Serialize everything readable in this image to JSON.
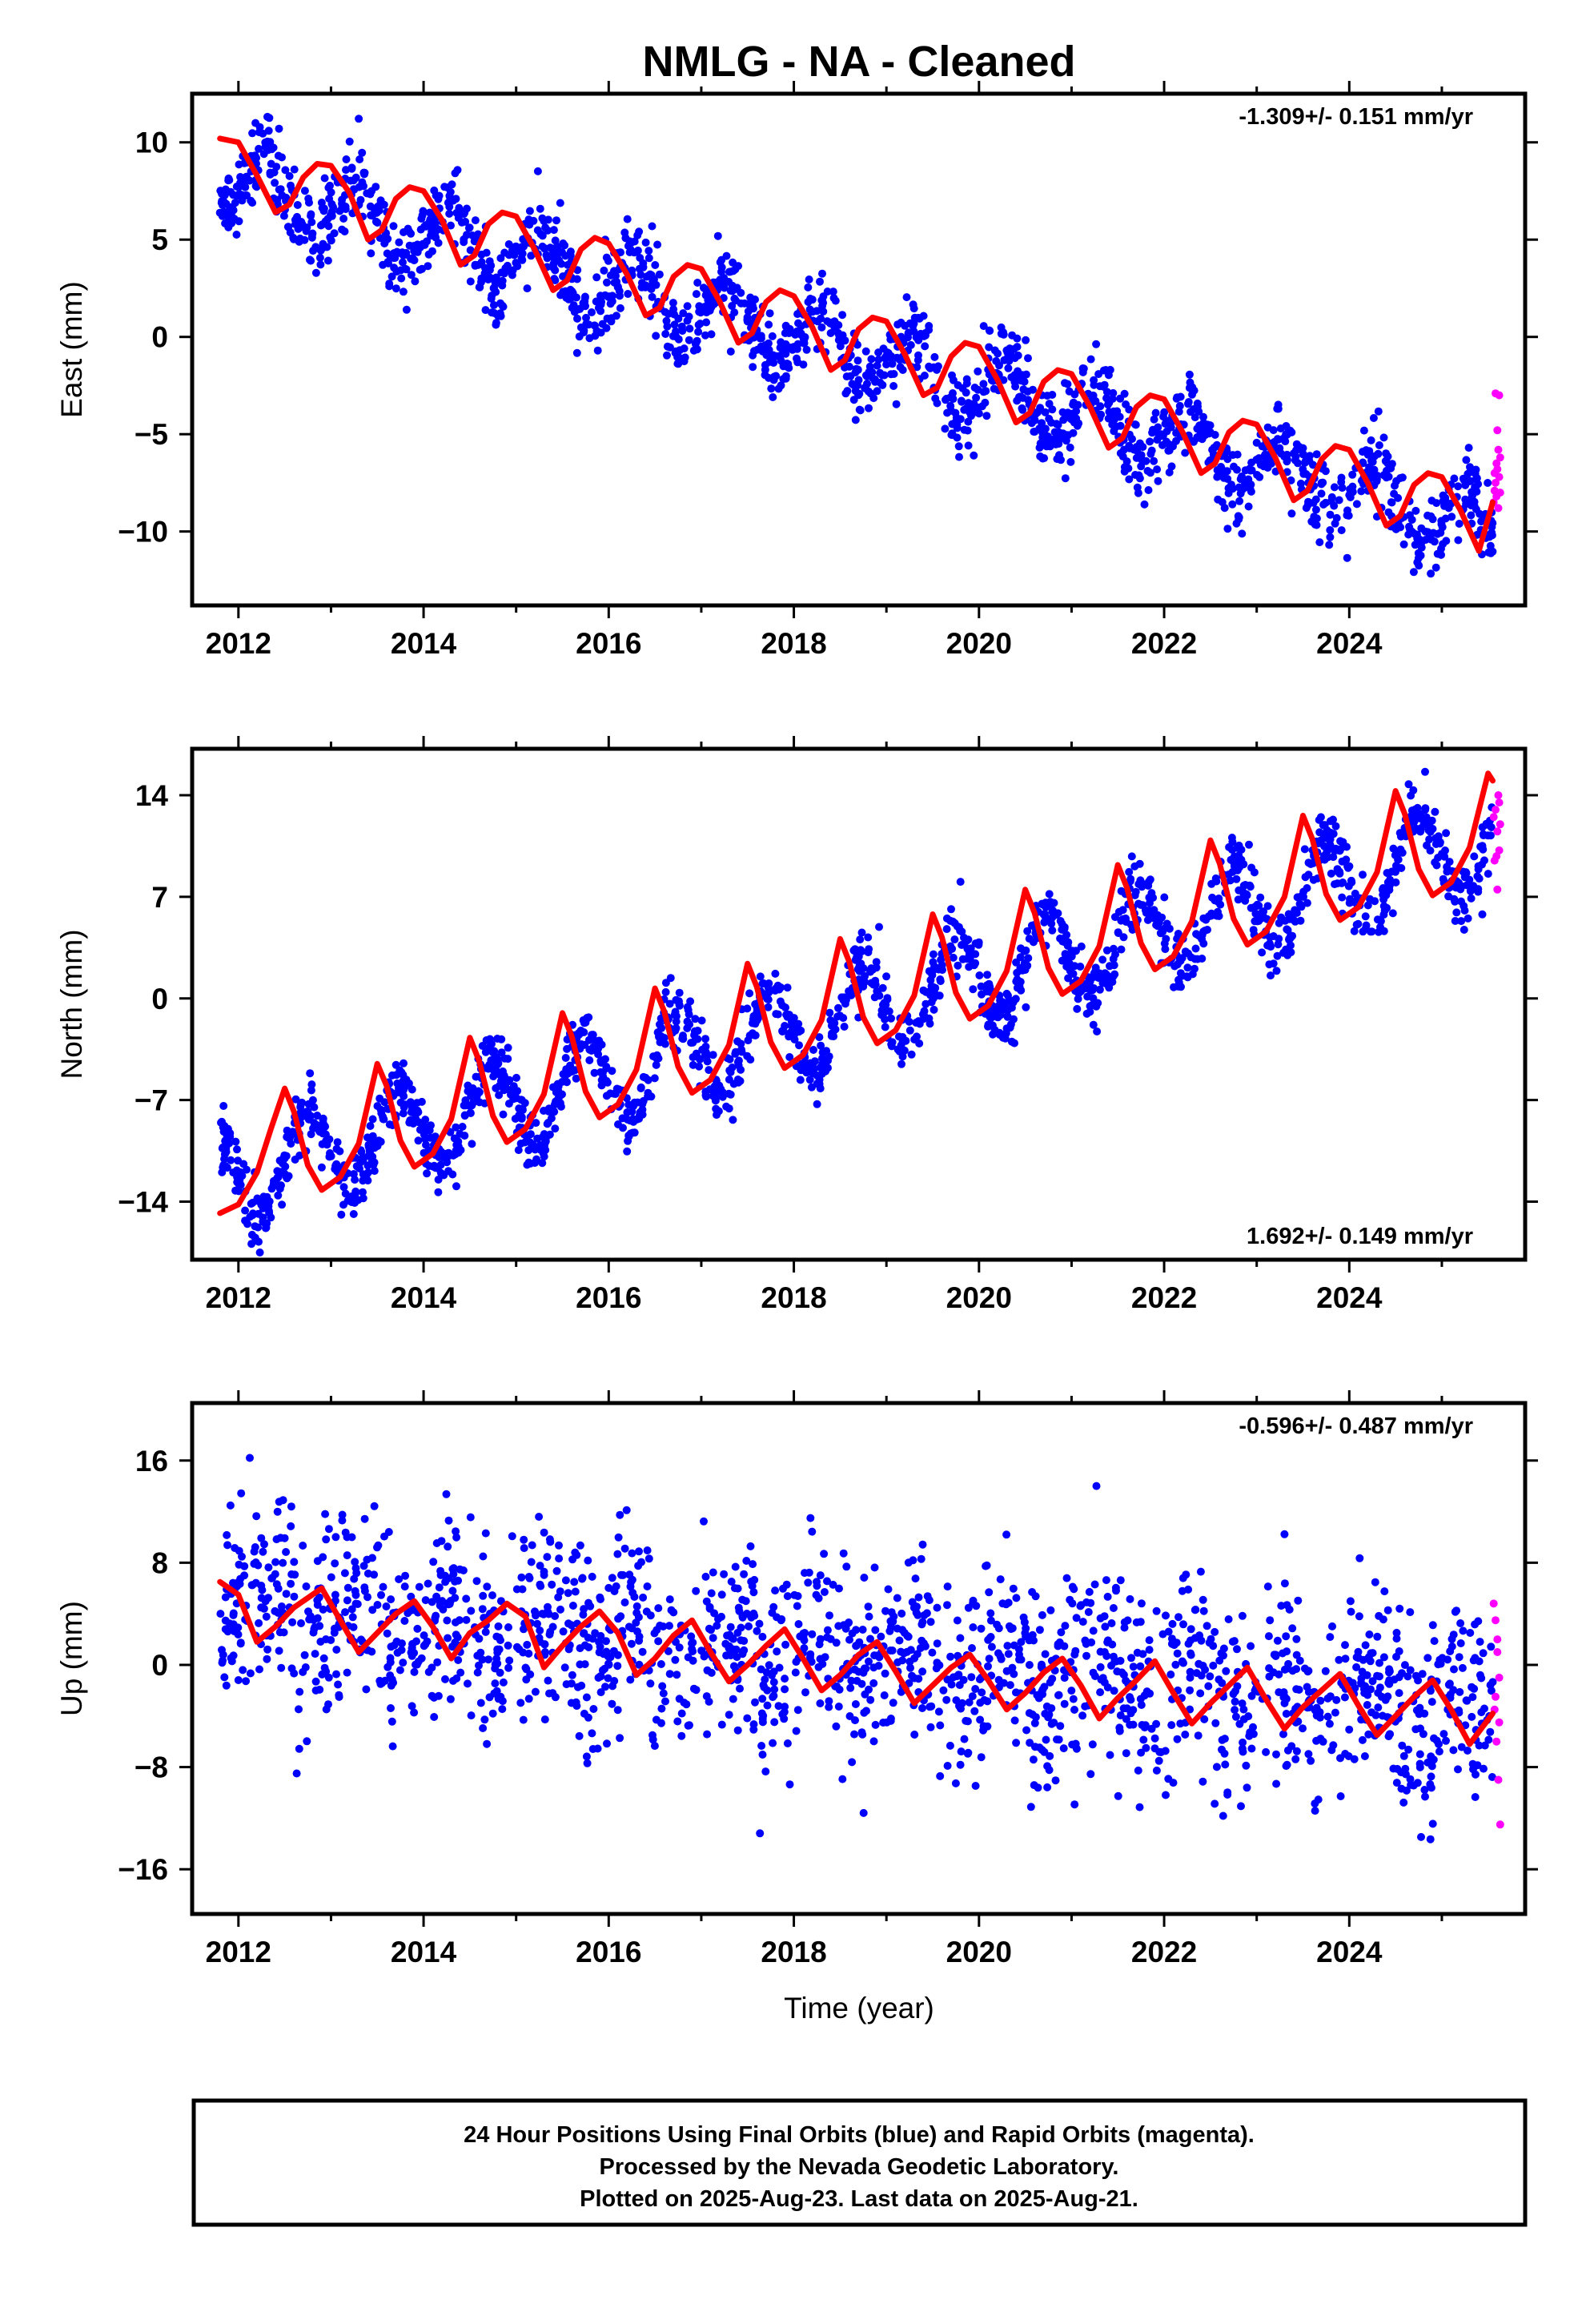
{
  "title": "NMLG  - NA - Cleaned",
  "xlabel": "Time (year)",
  "caption": [
    "24 Hour Positions Using Final Orbits (blue) and Rapid Orbits (magenta).",
    "Processed by the Nevada Geodetic Laboratory.",
    "Plotted on 2025-Aug-23. Last data on 2025-Aug-21."
  ],
  "colors": {
    "final_orbits": "#0000ff",
    "rapid_orbits": "#ff00ff",
    "fit": "#ff0000",
    "frame": "#000000"
  },
  "chart_data": [
    {
      "type": "scatter",
      "component": "east",
      "ylabel": "East (mm)",
      "rate_text": "-1.309+/- 0.151 mm/yr",
      "rate_position": "top-right",
      "xlim": [
        2011.5,
        2025.9
      ],
      "ylim": [
        -13.8,
        12.5
      ],
      "xticks": [
        2012,
        2014,
        2016,
        2018,
        2020,
        2022,
        2024
      ],
      "yticks": [
        10,
        5,
        0,
        -5,
        -10
      ],
      "yticklabels": [
        "10",
        "5",
        "0",
        "−5",
        "−10"
      ],
      "grid": false,
      "series": [
        {
          "name": "Final Orbits (blue)",
          "style": "points",
          "x_range": [
            2011.8,
            2025.55
          ],
          "trend": {
            "anchor_year": 2011.8,
            "value_at_anchor": 8.2,
            "slope": -1.309
          },
          "seasonal": {
            "amplitude": 1.7,
            "phase": 1.75,
            "period": 1.0
          },
          "scatter_std": 1.0,
          "count": 1800
        },
        {
          "name": "Rapid Orbits (magenta)",
          "style": "points",
          "x": [
            2025.56,
            2025.58,
            2025.6,
            2025.62,
            2025.63,
            2025.57,
            2025.59,
            2025.61,
            2025.6,
            2025.62,
            2025.58,
            2025.61,
            2025.63,
            2025.57,
            2025.59
          ],
          "y": [
            -8.5,
            -7.5,
            -6.8,
            -7.2,
            -8.0,
            -7.9,
            -6.5,
            -5.8,
            -4.8,
            -3.0,
            -2.9,
            -8.8,
            -6.2,
            -7.0,
            -8.2
          ]
        },
        {
          "name": "fit",
          "style": "line",
          "x": [
            2011.8,
            2012.0,
            2012.2,
            2012.4,
            2012.55,
            2012.7,
            2012.85,
            2013.0,
            2013.2,
            2013.4,
            2013.55,
            2013.7,
            2013.85,
            2014.0,
            2014.2,
            2014.4,
            2014.55,
            2014.7,
            2014.85,
            2015.0,
            2015.2,
            2015.4,
            2015.55,
            2015.7,
            2015.85,
            2016.0,
            2016.2,
            2016.4,
            2016.55,
            2016.7,
            2016.85,
            2017.0,
            2017.2,
            2017.4,
            2017.55,
            2017.7,
            2017.85,
            2018.0,
            2018.2,
            2018.4,
            2018.55,
            2018.7,
            2018.85,
            2019.0,
            2019.2,
            2019.4,
            2019.55,
            2019.7,
            2019.85,
            2020.0,
            2020.2,
            2020.4,
            2020.55,
            2020.7,
            2020.85,
            2021.0,
            2021.2,
            2021.4,
            2021.55,
            2021.7,
            2021.85,
            2022.0,
            2022.2,
            2022.4,
            2022.55,
            2022.7,
            2022.85,
            2023.0,
            2023.2,
            2023.4,
            2023.55,
            2023.7,
            2023.85,
            2024.0,
            2024.2,
            2024.4,
            2024.55,
            2024.7,
            2024.85,
            2025.0,
            2025.2,
            2025.4,
            2025.55
          ],
          "y": [
            10.2,
            10.0,
            8.3,
            6.4,
            6.8,
            8.2,
            8.9,
            8.8,
            7.4,
            5.0,
            5.5,
            7.1,
            7.7,
            7.5,
            6.0,
            3.7,
            4.2,
            5.8,
            6.4,
            6.2,
            4.5,
            2.4,
            2.9,
            4.5,
            5.1,
            4.8,
            3.2,
            1.1,
            1.5,
            3.1,
            3.7,
            3.5,
            1.8,
            -0.3,
            0.2,
            1.8,
            2.4,
            2.1,
            0.5,
            -1.7,
            -1.2,
            0.4,
            1.0,
            0.8,
            -0.9,
            -3.0,
            -2.6,
            -1.0,
            -0.3,
            -0.5,
            -2.2,
            -4.4,
            -3.9,
            -2.3,
            -1.7,
            -1.9,
            -3.6,
            -5.7,
            -5.2,
            -3.6,
            -3.0,
            -3.2,
            -4.9,
            -7.0,
            -6.5,
            -4.9,
            -4.3,
            -4.5,
            -6.2,
            -8.4,
            -7.9,
            -6.3,
            -5.6,
            -5.8,
            -7.5,
            -9.7,
            -9.2,
            -7.6,
            -7.0,
            -7.2,
            -8.9,
            -11.0,
            -8.5
          ]
        }
      ]
    },
    {
      "type": "scatter",
      "component": "north",
      "ylabel": "North (mm)",
      "rate_text": "1.692+/- 0.149 mm/yr",
      "rate_position": "bottom-right",
      "xlim": [
        2011.5,
        2025.9
      ],
      "ylim": [
        -18.0,
        17.2
      ],
      "xticks": [
        2012,
        2014,
        2016,
        2018,
        2020,
        2022,
        2024
      ],
      "yticks": [
        14,
        7,
        0,
        -7,
        -14
      ],
      "yticklabels": [
        "14",
        "7",
        "0",
        "−7",
        "−14"
      ],
      "grid": false,
      "series": [
        {
          "name": "Final Orbits (blue)",
          "style": "points",
          "x_range": [
            2011.8,
            2025.55
          ],
          "trend": {
            "anchor_year": 2011.8,
            "value_at_anchor": -12.5,
            "slope": 1.692
          },
          "seasonal": {
            "amplitude": 3.2,
            "phase": 4.6,
            "period": 1.0
          },
          "scatter_std": 1.1,
          "count": 1800
        },
        {
          "name": "Rapid Orbits (magenta)",
          "style": "points",
          "x": [
            2025.56,
            2025.58,
            2025.6,
            2025.62,
            2025.57,
            2025.59,
            2025.61,
            2025.63,
            2025.6,
            2025.62
          ],
          "y": [
            12.5,
            13.0,
            11.5,
            10.2,
            9.5,
            9.8,
            14.0,
            12.0,
            7.5,
            13.5
          ]
        },
        {
          "name": "fit",
          "style": "line",
          "x": [
            2011.8,
            2012.0,
            2012.2,
            2012.35,
            2012.5,
            2012.6,
            2012.75,
            2012.9,
            2013.1,
            2013.3,
            2013.5,
            2013.6,
            2013.75,
            2013.9,
            2014.1,
            2014.3,
            2014.5,
            2014.6,
            2014.75,
            2014.9,
            2015.1,
            2015.3,
            2015.5,
            2015.6,
            2015.75,
            2015.9,
            2016.1,
            2016.3,
            2016.5,
            2016.6,
            2016.75,
            2016.9,
            2017.1,
            2017.3,
            2017.5,
            2017.6,
            2017.75,
            2017.9,
            2018.1,
            2018.3,
            2018.5,
            2018.6,
            2018.75,
            2018.9,
            2019.1,
            2019.3,
            2019.5,
            2019.6,
            2019.75,
            2019.9,
            2020.1,
            2020.3,
            2020.5,
            2020.6,
            2020.75,
            2020.9,
            2021.1,
            2021.3,
            2021.5,
            2021.6,
            2021.75,
            2021.9,
            2022.1,
            2022.3,
            2022.5,
            2022.6,
            2022.75,
            2022.9,
            2023.1,
            2023.3,
            2023.5,
            2023.6,
            2023.75,
            2023.9,
            2024.1,
            2024.3,
            2024.5,
            2024.6,
            2024.75,
            2024.9,
            2025.1,
            2025.3,
            2025.5,
            2025.55
          ],
          "y": [
            -14.8,
            -14.2,
            -12.0,
            -9.0,
            -6.2,
            -7.8,
            -11.5,
            -13.2,
            -12.3,
            -10.0,
            -4.5,
            -6.0,
            -9.8,
            -11.6,
            -10.7,
            -8.3,
            -2.7,
            -4.3,
            -8.1,
            -9.9,
            -9.0,
            -6.6,
            -1.0,
            -2.6,
            -6.4,
            -8.2,
            -7.3,
            -4.9,
            0.7,
            -0.9,
            -4.7,
            -6.5,
            -5.6,
            -3.2,
            2.4,
            0.8,
            -3.0,
            -4.8,
            -3.9,
            -1.5,
            4.1,
            2.5,
            -1.3,
            -3.1,
            -2.2,
            0.2,
            5.8,
            4.2,
            0.4,
            -1.4,
            -0.5,
            1.9,
            7.5,
            5.9,
            2.1,
            0.3,
            1.2,
            3.6,
            9.2,
            7.6,
            3.8,
            2.0,
            2.9,
            5.3,
            10.9,
            9.3,
            5.5,
            3.7,
            4.6,
            7.0,
            12.6,
            11.0,
            7.2,
            5.4,
            6.3,
            8.7,
            14.3,
            12.7,
            8.9,
            7.1,
            8.0,
            10.4,
            15.5,
            15.0
          ]
        }
      ]
    },
    {
      "type": "scatter",
      "component": "up",
      "ylabel": "Up (mm)",
      "rate_text": "-0.596+/- 0.487 mm/yr",
      "rate_position": "top-right",
      "xlim": [
        2011.5,
        2025.9
      ],
      "ylim": [
        -19.5,
        20.5
      ],
      "xticks": [
        2012,
        2014,
        2016,
        2018,
        2020,
        2022,
        2024
      ],
      "yticks": [
        16,
        8,
        0,
        -8,
        -16
      ],
      "yticklabels": [
        "16",
        "8",
        "0",
        "−8",
        "−16"
      ],
      "grid": false,
      "series": [
        {
          "name": "Final Orbits (blue)",
          "style": "points",
          "x_range": [
            2011.8,
            2025.55
          ],
          "trend": {
            "anchor_year": 2011.8,
            "value_at_anchor": 4.5,
            "slope": -0.596
          },
          "seasonal": {
            "amplitude": 2.0,
            "phase": 1.6,
            "period": 1.0
          },
          "scatter_std": 3.8,
          "count": 1800
        },
        {
          "name": "Rapid Orbits (magenta)",
          "style": "points",
          "x": [
            2025.56,
            2025.58,
            2025.6,
            2025.62,
            2025.57,
            2025.59,
            2025.61,
            2025.63,
            2025.6,
            2025.62,
            2025.58
          ],
          "y": [
            4.8,
            3.5,
            2.0,
            -1.0,
            -3.5,
            -6.0,
            -9.0,
            -12.5,
            1.0,
            -4.5,
            -2.5
          ]
        },
        {
          "name": "fit",
          "style": "line",
          "x": [
            2011.8,
            2012.0,
            2012.2,
            2012.4,
            2012.6,
            2012.9,
            2013.1,
            2013.3,
            2013.5,
            2013.7,
            2013.9,
            2014.1,
            2014.3,
            2014.5,
            2014.7,
            2014.9,
            2015.1,
            2015.3,
            2015.5,
            2015.7,
            2015.9,
            2016.1,
            2016.3,
            2016.5,
            2016.7,
            2016.9,
            2017.1,
            2017.3,
            2017.5,
            2017.7,
            2017.9,
            2018.1,
            2018.3,
            2018.5,
            2018.7,
            2018.9,
            2019.1,
            2019.3,
            2019.5,
            2019.7,
            2019.9,
            2020.1,
            2020.3,
            2020.5,
            2020.7,
            2020.9,
            2021.1,
            2021.3,
            2021.5,
            2021.7,
            2021.9,
            2022.1,
            2022.3,
            2022.5,
            2022.7,
            2022.9,
            2023.1,
            2023.3,
            2023.5,
            2023.7,
            2023.9,
            2024.1,
            2024.3,
            2024.5,
            2024.7,
            2024.9,
            2025.1,
            2025.3,
            2025.55
          ],
          "y": [
            6.5,
            5.5,
            1.8,
            3.0,
            4.5,
            6.0,
            3.5,
            1.0,
            2.5,
            4.0,
            5.0,
            3.0,
            0.5,
            2.5,
            3.5,
            4.8,
            3.8,
            -0.2,
            1.5,
            3.0,
            4.2,
            2.5,
            -0.8,
            0.5,
            2.3,
            3.5,
            1.0,
            -1.3,
            0.0,
            1.5,
            2.8,
            0.5,
            -2.0,
            -0.8,
            0.8,
            1.8,
            -0.5,
            -3.0,
            -1.6,
            -0.2,
            0.8,
            -1.2,
            -3.5,
            -2.2,
            -0.6,
            0.5,
            -1.6,
            -4.2,
            -2.6,
            -1.2,
            0.3,
            -2.2,
            -4.6,
            -3.0,
            -1.6,
            -0.2,
            -2.7,
            -5.0,
            -3.3,
            -2.0,
            -0.7,
            -3.2,
            -5.5,
            -4.0,
            -2.5,
            -1.2,
            -3.5,
            -6.2,
            -3.8
          ]
        }
      ]
    }
  ]
}
